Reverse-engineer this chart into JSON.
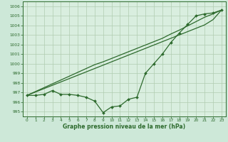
{
  "xlabel": "Graphe pression niveau de la mer (hPa)",
  "bg_color": "#cde8d8",
  "plot_bg_color": "#d9eedf",
  "line_color": "#2d6a2d",
  "grid_color": "#b0ccb0",
  "tick_label_color": "#2d6a2d",
  "xlabel_color": "#2d6a2d",
  "ylim": [
    994.5,
    1006.5
  ],
  "xlim": [
    -0.5,
    23.5
  ],
  "yticks": [
    995,
    996,
    997,
    998,
    999,
    1000,
    1001,
    1002,
    1003,
    1004,
    1005,
    1006
  ],
  "xticks": [
    0,
    1,
    2,
    3,
    4,
    5,
    6,
    7,
    8,
    9,
    10,
    11,
    12,
    13,
    14,
    15,
    16,
    17,
    18,
    19,
    20,
    21,
    22,
    23
  ],
  "series_data": [
    996.7,
    996.7,
    996.8,
    997.2,
    996.8,
    996.8,
    996.7,
    996.5,
    996.1,
    994.9,
    995.5,
    995.6,
    996.3,
    996.5,
    999.0,
    1000.0,
    1001.0,
    1002.2,
    1003.2,
    1004.1,
    1005.0,
    1005.2,
    1005.3,
    1005.6
  ],
  "series_line1": [
    996.7,
    997.05,
    997.4,
    997.75,
    998.1,
    998.45,
    998.8,
    999.15,
    999.5,
    999.85,
    1000.2,
    1000.55,
    1000.9,
    1001.25,
    1001.6,
    1001.95,
    1002.3,
    1002.65,
    1003.0,
    1003.35,
    1003.7,
    1004.05,
    1004.6,
    1005.6
  ],
  "series_line2": [
    996.7,
    997.1,
    997.5,
    997.9,
    998.3,
    998.7,
    999.1,
    999.5,
    999.9,
    1000.2,
    1000.55,
    1000.9,
    1001.25,
    1001.6,
    1001.95,
    1002.3,
    1002.65,
    1003.1,
    1003.5,
    1003.95,
    1004.4,
    1004.85,
    1005.2,
    1005.6
  ]
}
